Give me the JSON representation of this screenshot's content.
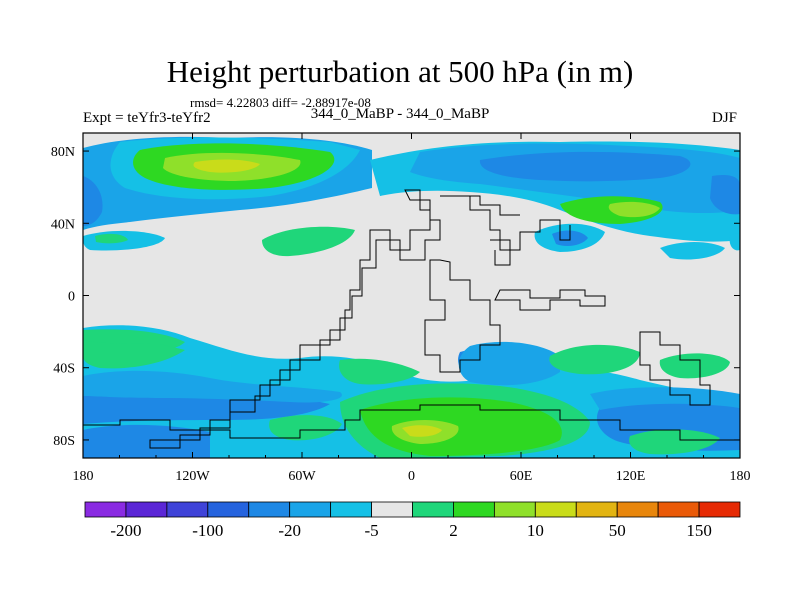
{
  "chart_data": {
    "type": "heatmap",
    "title": "Height perturbation at 500 hPa (in m)",
    "stats": "rmsd= 4.22803 diff= -2.88917e-08",
    "left_label": "Expt = teYfr3-teYfr2",
    "center_label": "344_0_MaBP - 344_0_MaBP",
    "right_label": "DJF",
    "x_ticks": [
      "180",
      "120W",
      "60W",
      "0",
      "60E",
      "120E",
      "180"
    ],
    "y_ticks": [
      "80N",
      "40N",
      "0",
      "40S",
      "80S"
    ],
    "x_range": [
      -180,
      180
    ],
    "y_range": [
      -90,
      90
    ],
    "colorbar": {
      "colors": [
        "#8a2be2",
        "#5b26d6",
        "#3f43d8",
        "#2563de",
        "#1e88e5",
        "#1aa4e8",
        "#15c0e6",
        "#e6e6e6",
        "#1fd67a",
        "#2ed822",
        "#8fe02a",
        "#c9dc1a",
        "#e2b412",
        "#e8860c",
        "#ea5a08",
        "#e62a04"
      ],
      "labels": [
        "-200",
        "-100",
        "-20",
        "-5",
        "2",
        "10",
        "50",
        "150"
      ]
    }
  }
}
